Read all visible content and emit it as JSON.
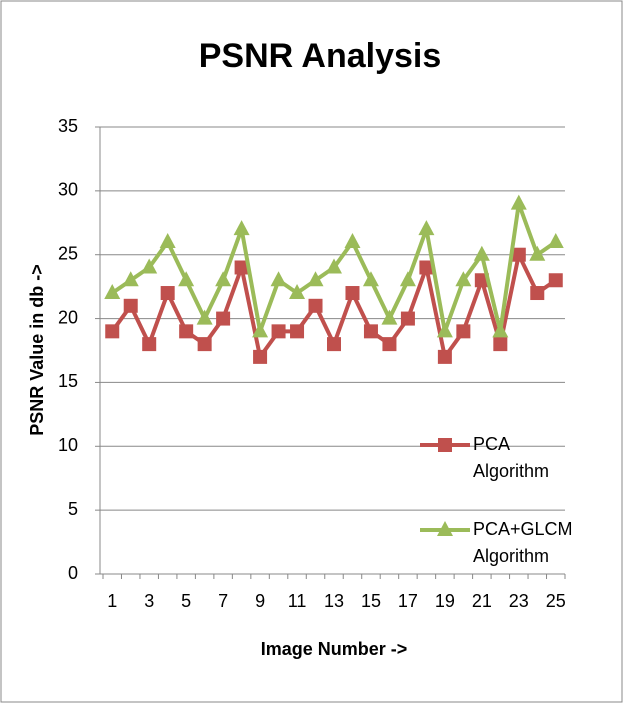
{
  "chart_data": {
    "type": "line",
    "title": "PSNR Analysis",
    "x_label": "Image Number ->",
    "y_label": "PSNR  Value in db ->",
    "categories": [
      1,
      null,
      3,
      null,
      5,
      null,
      7,
      null,
      9,
      null,
      11,
      null,
      13,
      null,
      15,
      null,
      17,
      null,
      19,
      null,
      21,
      null,
      23,
      null,
      25
    ],
    "series": [
      {
        "name": "PCA Algorithm",
        "color": "#c0504d",
        "marker": "square",
        "values": [
          19,
          21,
          18,
          22,
          19,
          18,
          20,
          24,
          17,
          19,
          19,
          21,
          18,
          22,
          19,
          18,
          20,
          24,
          17,
          19,
          23,
          18,
          25,
          22,
          23
        ]
      },
      {
        "name": "PCA+GLCM Algorithm",
        "color": "#9bbb59",
        "marker": "triangle",
        "values": [
          22,
          23,
          24,
          26,
          23,
          20,
          23,
          27,
          19,
          23,
          22,
          23,
          24,
          26,
          23,
          20,
          23,
          27,
          19,
          23,
          25,
          19,
          29,
          25,
          26
        ]
      }
    ],
    "ylim": [
      0,
      35
    ],
    "yticks": [
      0,
      5,
      10,
      15,
      20,
      25,
      30,
      35
    ],
    "grid": true,
    "legend": "right"
  }
}
